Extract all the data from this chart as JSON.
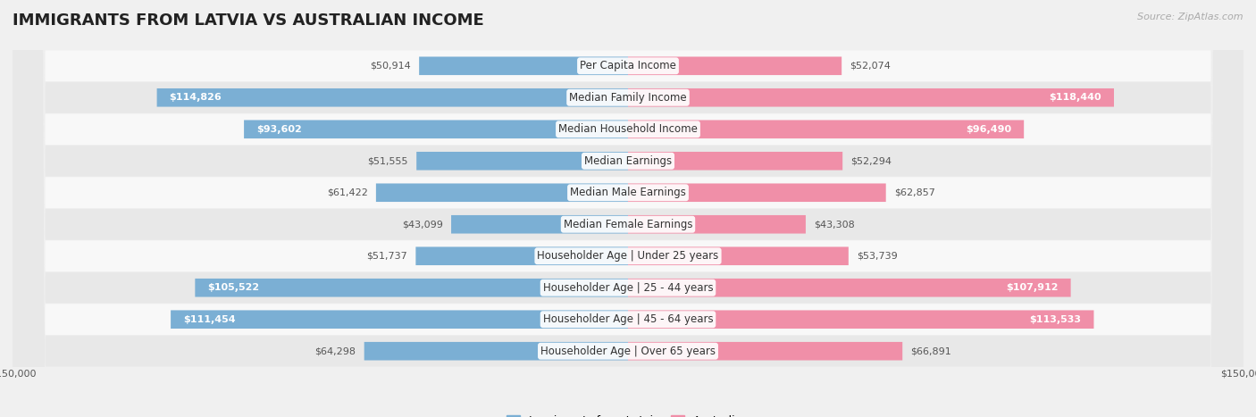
{
  "title": "IMMIGRANTS FROM LATVIA VS AUSTRALIAN INCOME",
  "source": "Source: ZipAtlas.com",
  "categories": [
    "Per Capita Income",
    "Median Family Income",
    "Median Household Income",
    "Median Earnings",
    "Median Male Earnings",
    "Median Female Earnings",
    "Householder Age | Under 25 years",
    "Householder Age | 25 - 44 years",
    "Householder Age | 45 - 64 years",
    "Householder Age | Over 65 years"
  ],
  "latvia_values": [
    50914,
    114826,
    93602,
    51555,
    61422,
    43099,
    51737,
    105522,
    111454,
    64298
  ],
  "australia_values": [
    52074,
    118440,
    96490,
    52294,
    62857,
    43308,
    53739,
    107912,
    113533,
    66891
  ],
  "max_value": 150000,
  "bar_height": 0.58,
  "latvia_color": "#7bafd4",
  "australia_color": "#f08fa8",
  "latvia_label": "Immigrants from Latvia",
  "australia_label": "Australian",
  "bg_color": "#f0f0f0",
  "row_bg_light": "#f8f8f8",
  "row_bg_dark": "#e8e8e8",
  "title_fontsize": 13,
  "label_fontsize": 8.5,
  "value_fontsize": 8.0,
  "legend_fontsize": 9,
  "inside_threshold": 80000
}
